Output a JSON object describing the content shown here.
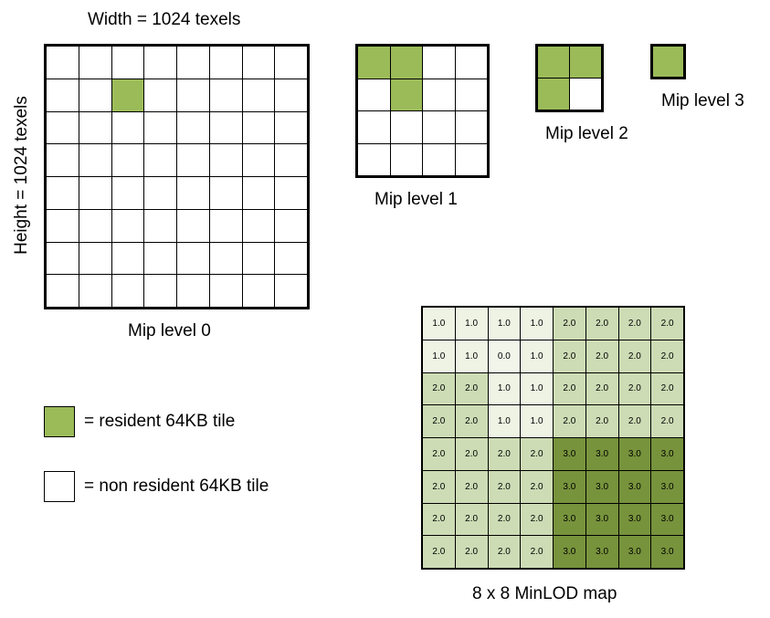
{
  "labels": {
    "width": "Width = 1024 texels",
    "height": "Height = 1024 texels",
    "mip0": "Mip level 0",
    "mip1": "Mip level 1",
    "mip2": "Mip level 2",
    "mip3": "Mip level 3",
    "minlod": "8 x 8 MinLOD map"
  },
  "legend": {
    "resident": "= resident 64KB tile",
    "non_resident": "= non resident 64KB tile"
  },
  "colors": {
    "resident": "#9bbb59",
    "non_resident": "#ffffff",
    "lod_0": "#f2f5ea",
    "lod_1": "#eef3e4",
    "lod_2": "#cddcb5",
    "lod_3": "#77933c"
  },
  "mip_levels": [
    {
      "size": 8,
      "resident": [
        [
          1,
          2
        ]
      ]
    },
    {
      "size": 4,
      "resident": [
        [
          0,
          0
        ],
        [
          0,
          1
        ],
        [
          1,
          1
        ]
      ]
    },
    {
      "size": 2,
      "resident": [
        [
          0,
          0
        ],
        [
          0,
          1
        ],
        [
          1,
          0
        ]
      ]
    },
    {
      "size": 1,
      "resident": [
        [
          0,
          0
        ]
      ]
    }
  ],
  "minlod_map": [
    [
      "1.0",
      "1.0",
      "1.0",
      "1.0",
      "2.0",
      "2.0",
      "2.0",
      "2.0"
    ],
    [
      "1.0",
      "1.0",
      "0.0",
      "1.0",
      "2.0",
      "2.0",
      "2.0",
      "2.0"
    ],
    [
      "2.0",
      "2.0",
      "1.0",
      "1.0",
      "2.0",
      "2.0",
      "2.0",
      "2.0"
    ],
    [
      "2.0",
      "2.0",
      "1.0",
      "1.0",
      "2.0",
      "2.0",
      "2.0",
      "2.0"
    ],
    [
      "2.0",
      "2.0",
      "2.0",
      "2.0",
      "3.0",
      "3.0",
      "3.0",
      "3.0"
    ],
    [
      "2.0",
      "2.0",
      "2.0",
      "2.0",
      "3.0",
      "3.0",
      "3.0",
      "3.0"
    ],
    [
      "2.0",
      "2.0",
      "2.0",
      "2.0",
      "3.0",
      "3.0",
      "3.0",
      "3.0"
    ],
    [
      "2.0",
      "2.0",
      "2.0",
      "2.0",
      "3.0",
      "3.0",
      "3.0",
      "3.0"
    ]
  ]
}
